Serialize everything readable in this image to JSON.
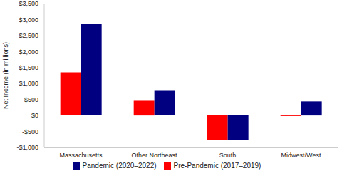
{
  "chart_data": {
    "type": "bar",
    "y_label": "Net Income (in millions)",
    "categories": [
      "Massachusetts",
      "Other Northeast",
      "South",
      "Midwest/West"
    ],
    "series": [
      {
        "name": "Pre-Pandemic (2017–2019)",
        "color": "#ff0000",
        "values": [
          1350,
          460,
          -770,
          -20
        ]
      },
      {
        "name": "Pandemic (2020–2022)",
        "color": "#000080",
        "values": [
          2860,
          770,
          -770,
          440
        ]
      }
    ],
    "ylim": [
      -1000,
      3500
    ],
    "yticks": [
      {
        "value": -1000,
        "label": "-$1,000"
      },
      {
        "value": -500,
        "label": "-$500"
      },
      {
        "value": 0,
        "label": "$0"
      },
      {
        "value": 500,
        "label": "$500"
      },
      {
        "value": 1000,
        "label": "$1,000"
      },
      {
        "value": 1500,
        "label": "$1,500"
      },
      {
        "value": 2000,
        "label": "$2,000"
      },
      {
        "value": 2500,
        "label": "$2,500"
      },
      {
        "value": 3000,
        "label": "$3,000"
      },
      {
        "value": 3500,
        "label": "$3,500"
      }
    ],
    "grid": false,
    "legend": "bottom"
  }
}
